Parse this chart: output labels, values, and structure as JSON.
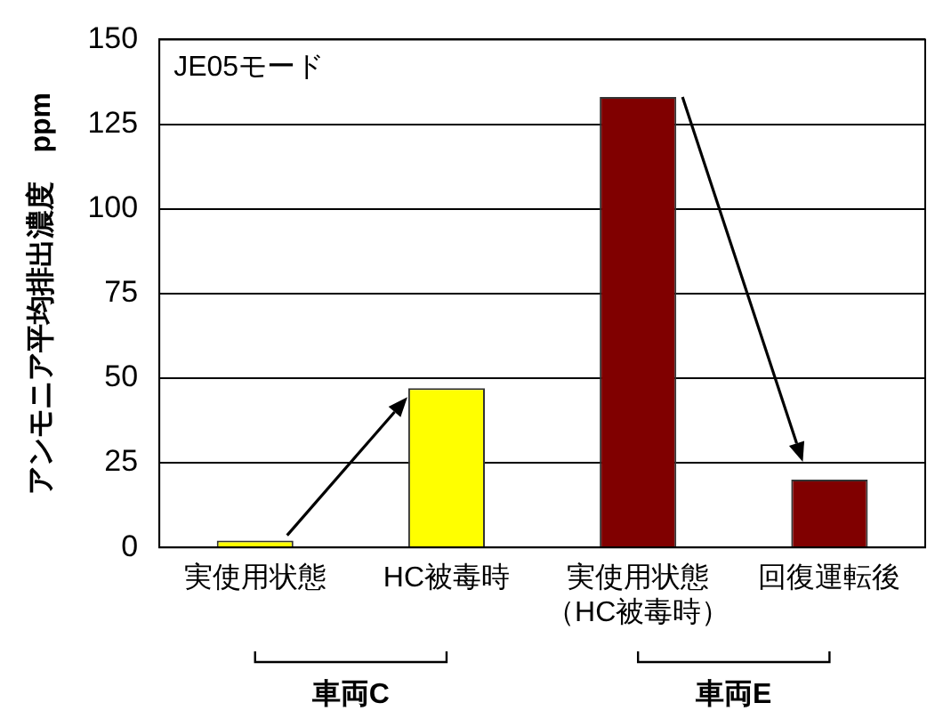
{
  "chart_data": {
    "type": "bar",
    "title": "JE05モード",
    "categories": [
      "実使用状態",
      "HC被毒時",
      "実使用状態（HC被毒時）",
      "回復運転後"
    ],
    "values": [
      2,
      47,
      133,
      20
    ],
    "colors": [
      "#ffff00",
      "#ffff00",
      "#800000",
      "#800000"
    ],
    "ylabel": "アンモニア平均排出濃度　ppm",
    "ylim": [
      0,
      150
    ],
    "yticks": [
      0,
      25,
      50,
      75,
      100,
      125,
      150
    ],
    "grid": "y",
    "legend": false,
    "annotations": [
      "車両C",
      "車両E"
    ]
  }
}
